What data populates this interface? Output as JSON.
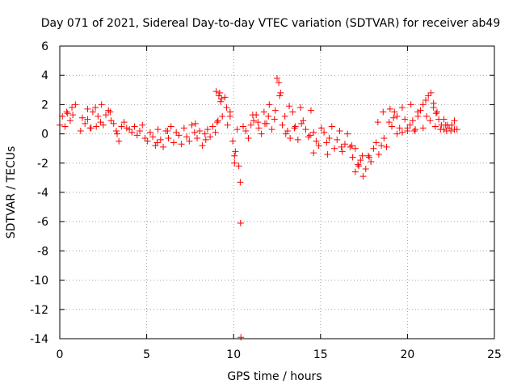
{
  "chart_data": {
    "type": "scatter",
    "title": "Day 071 of 2021, Sidereal Day-to-day VTEC variation (SDTVAR) for receiver ab49",
    "xlabel": "GPS time / hours",
    "ylabel": "SDTVAR / TECUs",
    "xlim": [
      0,
      25
    ],
    "ylim": [
      -14,
      6
    ],
    "x_ticks": [
      0,
      5,
      10,
      15,
      20,
      25
    ],
    "y_ticks": [
      -14,
      -12,
      -10,
      -8,
      -6,
      -4,
      -2,
      0,
      2,
      4,
      6
    ],
    "grid": true,
    "marker": "+",
    "color": "#ff0000",
    "series": [
      {
        "name": "SDTVAR",
        "x": [
          0.0,
          0.15,
          0.3,
          0.45,
          0.6,
          0.75,
          0.9,
          1.2,
          1.3,
          1.45,
          1.6,
          1.75,
          1.9,
          2.05,
          2.2,
          2.35,
          2.5,
          2.65,
          2.8,
          2.95,
          3.1,
          3.25,
          3.4,
          3.55,
          3.7,
          3.85,
          4.0,
          4.15,
          4.3,
          4.45,
          4.6,
          4.75,
          4.9,
          5.05,
          5.2,
          5.35,
          5.5,
          5.65,
          5.8,
          5.95,
          6.1,
          6.25,
          6.4,
          6.55,
          6.7,
          6.85,
          7.0,
          7.15,
          7.3,
          7.45,
          7.6,
          7.75,
          7.9,
          8.05,
          8.2,
          8.35,
          8.5,
          8.65,
          8.8,
          8.95,
          9.05,
          9.2,
          9.35,
          9.5,
          9.65,
          9.8,
          9.95,
          10.05,
          10.2,
          10.3,
          10.38,
          10.4,
          10.42,
          10.55,
          10.7,
          10.85,
          11.0,
          11.15,
          11.3,
          11.45,
          11.6,
          11.75,
          11.9,
          12.05,
          12.2,
          12.35,
          12.5,
          12.65,
          12.8,
          12.95,
          13.1,
          13.25,
          13.4,
          13.55,
          13.7,
          13.85,
          14.0,
          14.15,
          14.3,
          14.45,
          14.6,
          14.75,
          14.9,
          15.05,
          15.2,
          15.35,
          15.5,
          15.65,
          15.8,
          15.95,
          16.1,
          16.25,
          16.4,
          16.55,
          16.7,
          16.85,
          17.0,
          17.15,
          17.3,
          17.45,
          17.6,
          17.75,
          17.9,
          18.05,
          18.2,
          18.35,
          18.5,
          18.65,
          18.8,
          18.95,
          19.1,
          19.25,
          19.4,
          19.55,
          19.7,
          19.85,
          20.0,
          20.15,
          20.3,
          20.45,
          20.6,
          20.75,
          20.9,
          21.05,
          21.2,
          21.35,
          21.5,
          21.65,
          21.8,
          21.95,
          22.1,
          22.25,
          22.4,
          22.55,
          22.7,
          22.85,
          0.4,
          0.7,
          2.1,
          2.4,
          2.9,
          3.3,
          1.6,
          1.8,
          9.0,
          9.15,
          9.3,
          9.1,
          9.25,
          9.6,
          9.8,
          10.05,
          10.1,
          11.8,
          12.0,
          12.4,
          12.7,
          12.6,
          13.2,
          13.5,
          13.9,
          14.4,
          14.6,
          17.0,
          17.2,
          17.4,
          17.8,
          18.3,
          18.6,
          19.0,
          19.2,
          19.4,
          19.7,
          20.2,
          20.6,
          20.9,
          21.1,
          21.3,
          21.5,
          21.7,
          21.9,
          22.1,
          22.3,
          22.5,
          22.7,
          5.6,
          6.2,
          7.8,
          8.4,
          11.1,
          11.4,
          13.0,
          15.4,
          16.2,
          16.8,
          20.0,
          20.4,
          21.6,
          22.2
        ],
        "y": [
          0.6,
          1.2,
          0.5,
          1.4,
          0.9,
          1.3,
          2.0,
          0.2,
          1.1,
          0.7,
          1.0,
          0.4,
          1.5,
          1.8,
          1.2,
          0.8,
          0.6,
          1.3,
          1.6,
          0.9,
          0.7,
          0.2,
          -0.5,
          0.5,
          0.8,
          0.4,
          0.3,
          0.1,
          0.5,
          -0.1,
          0.2,
          0.6,
          -0.3,
          -0.5,
          0.1,
          -0.2,
          -0.8,
          0.3,
          -0.4,
          -0.9,
          0.2,
          -0.3,
          0.5,
          -0.6,
          0.1,
          -0.1,
          -0.7,
          0.4,
          -0.2,
          -0.5,
          0.6,
          0.1,
          -0.3,
          0.2,
          -0.8,
          0.0,
          0.3,
          -0.2,
          0.5,
          0.1,
          0.8,
          2.8,
          1.2,
          2.5,
          0.6,
          1.5,
          -0.5,
          -1.5,
          0.3,
          -2.2,
          -3.3,
          -6.1,
          -13.9,
          0.5,
          0.2,
          -0.3,
          0.6,
          0.9,
          1.3,
          0.4,
          0.0,
          1.5,
          0.7,
          2.0,
          0.3,
          1.0,
          3.8,
          2.6,
          0.6,
          1.2,
          0.2,
          -0.3,
          1.5,
          0.5,
          -0.4,
          1.8,
          0.9,
          0.3,
          -0.2,
          1.6,
          0.1,
          -0.5,
          -0.8,
          0.4,
          0.1,
          -0.6,
          -0.3,
          0.5,
          -1.0,
          -0.4,
          0.2,
          -1.2,
          -0.7,
          0.0,
          -0.9,
          -1.6,
          -2.6,
          -2.1,
          -1.8,
          -2.9,
          -2.4,
          -1.5,
          -1.9,
          -1.0,
          -0.6,
          -1.4,
          -0.8,
          -0.3,
          -0.9,
          0.8,
          0.5,
          1.5,
          1.2,
          0.4,
          1.8,
          1.0,
          0.2,
          0.6,
          0.9,
          0.3,
          1.2,
          1.6,
          2.0,
          2.3,
          2.6,
          2.8,
          1.8,
          1.4,
          1.0,
          0.6,
          0.3,
          0.2,
          0.4,
          0.6,
          0.3,
          0.3,
          1.5,
          1.8,
          0.5,
          2.0,
          1.5,
          0.0,
          1.7,
          0.4,
          2.9,
          2.6,
          2.4,
          0.9,
          2.2,
          1.8,
          1.2,
          -2.0,
          -1.2,
          0.7,
          1.2,
          1.6,
          2.8,
          3.5,
          1.9,
          0.4,
          0.7,
          -0.1,
          -1.3,
          -1.0,
          -2.2,
          -1.5,
          -1.6,
          0.8,
          1.5,
          1.7,
          1.1,
          0.0,
          0.1,
          2.0,
          1.5,
          0.4,
          1.2,
          0.9,
          2.1,
          1.5,
          0.3,
          1.0,
          0.6,
          0.2,
          0.9,
          -0.6,
          0.2,
          0.7,
          -0.4,
          1.3,
          0.8,
          0.0,
          -1.4,
          -0.9,
          -0.8,
          0.4,
          0.2,
          0.5,
          0.6
        ]
      }
    ]
  }
}
